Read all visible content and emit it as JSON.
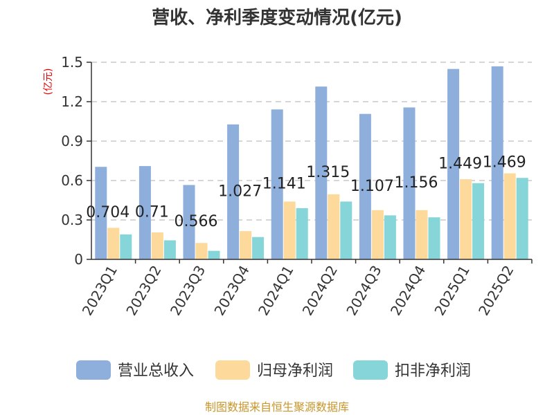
{
  "title": "营收、净利季度变动情况(亿元)",
  "source": "制图数据来自恒生聚源数据库",
  "chart_data": {
    "type": "bar",
    "title": "营收、净利季度变动情况(亿元)",
    "ylabel": "(亿元)",
    "xlabel": "",
    "ylim": [
      0,
      1.5
    ],
    "yticks": [
      "0",
      "0.3",
      "0.6",
      "0.9",
      "1.2",
      "1.5"
    ],
    "grid": true,
    "legend_position": "bottom",
    "categories": [
      "2023Q1",
      "2023Q2",
      "2023Q3",
      "2023Q4",
      "2024Q1",
      "2024Q2",
      "2024Q3",
      "2024Q4",
      "2025Q1",
      "2025Q2"
    ],
    "series": [
      {
        "name": "营业总收入",
        "color": "#8eaedc",
        "values": [
          0.704,
          0.71,
          0.566,
          1.027,
          1.141,
          1.315,
          1.107,
          1.156,
          1.449,
          1.469
        ],
        "labels": [
          "0.704",
          "0.71",
          "0.566",
          "1.027",
          "1.141",
          "1.315",
          "1.107",
          "1.156",
          "1.449",
          "1.469"
        ]
      },
      {
        "name": "归母净利润",
        "color": "#fdd99b",
        "values": [
          0.24,
          0.205,
          0.125,
          0.215,
          0.44,
          0.495,
          0.375,
          0.375,
          0.61,
          0.655
        ]
      },
      {
        "name": "扣非净利润",
        "color": "#86d5d8",
        "values": [
          0.19,
          0.145,
          0.065,
          0.17,
          0.39,
          0.44,
          0.335,
          0.32,
          0.58,
          0.62
        ]
      }
    ]
  }
}
